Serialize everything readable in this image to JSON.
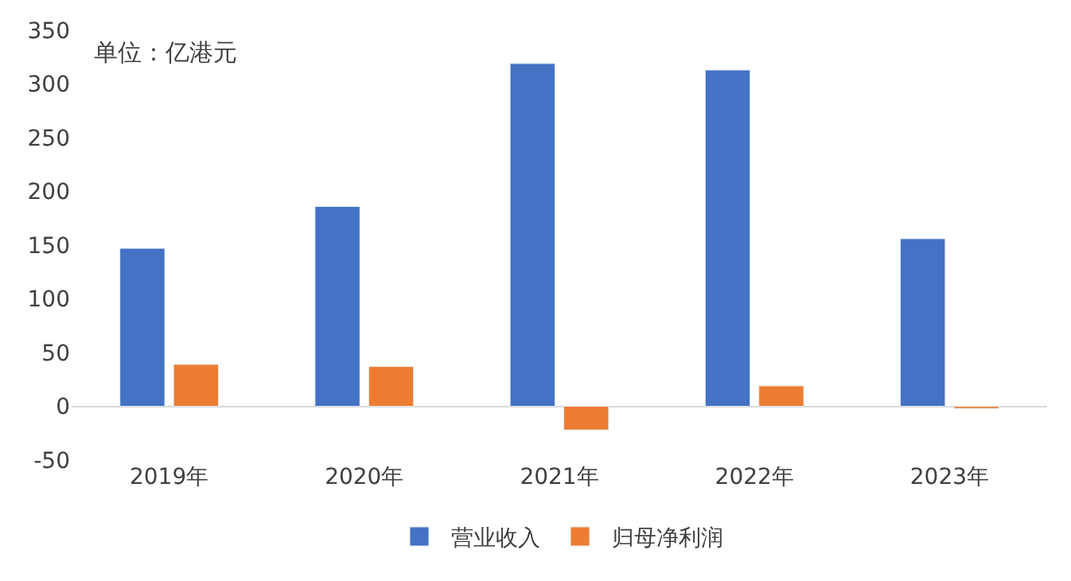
{
  "chart_data": {
    "type": "bar",
    "categories": [
      "2019年",
      "2020年",
      "2021年",
      "2022年",
      "2023年"
    ],
    "series": [
      {
        "name": "营业收入",
        "color": "#4472c4",
        "values": [
          147,
          186,
          319,
          313,
          156
        ]
      },
      {
        "name": "归母净利润",
        "color": "#ed7d31",
        "values": [
          39,
          37,
          -22,
          19,
          -2
        ]
      }
    ],
    "ylim": [
      -50,
      350
    ],
    "yticks": [
      -50,
      0,
      50,
      100,
      150,
      200,
      250,
      300,
      350
    ],
    "legend": "bottom",
    "annotations": [
      "单位：亿港元"
    ]
  }
}
